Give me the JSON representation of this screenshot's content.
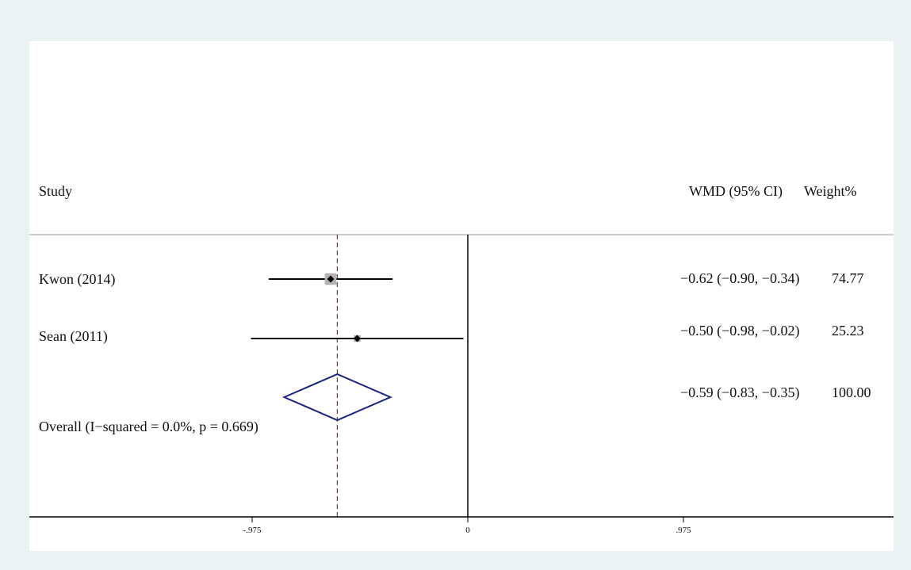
{
  "chart_data": {
    "type": "forest",
    "headers": {
      "study": "Study",
      "effect": "WMD (95% CI)",
      "weight": "Weight%"
    },
    "studies": [
      {
        "name": "Kwon (2014)",
        "wmd": -0.62,
        "ci": [
          -0.9,
          -0.34
        ],
        "weight": 74.77,
        "label": "−0.62 (−0.90, −0.34)",
        "weight_label": "74.77"
      },
      {
        "name": "Sean (2011)",
        "wmd": -0.5,
        "ci": [
          -0.98,
          -0.02
        ],
        "weight": 25.23,
        "label": "−0.50 (−0.98, −0.02)",
        "weight_label": "25.23"
      }
    ],
    "overall": {
      "name": "Overall  (I−squared = 0.0%, p = 0.669)",
      "wmd": -0.59,
      "ci": [
        -0.83,
        -0.35
      ],
      "weight": 100.0,
      "label": "−0.59 (−0.83, −0.35)",
      "weight_label": "100.00"
    },
    "xaxis": {
      "ticks": [
        -0.975,
        0,
        0.975
      ],
      "tick_labels": [
        "-.975",
        "0",
        ".975"
      ],
      "range": [
        -1.045,
        0.955
      ]
    },
    "colors": {
      "plot_bg": "#ffffff",
      "outer_bg": "#eaf1f3",
      "ci_line": "#000000",
      "weight_box": "#b3b3b3",
      "diamond": "#1a237e",
      "overall_line": "#b22222"
    }
  }
}
